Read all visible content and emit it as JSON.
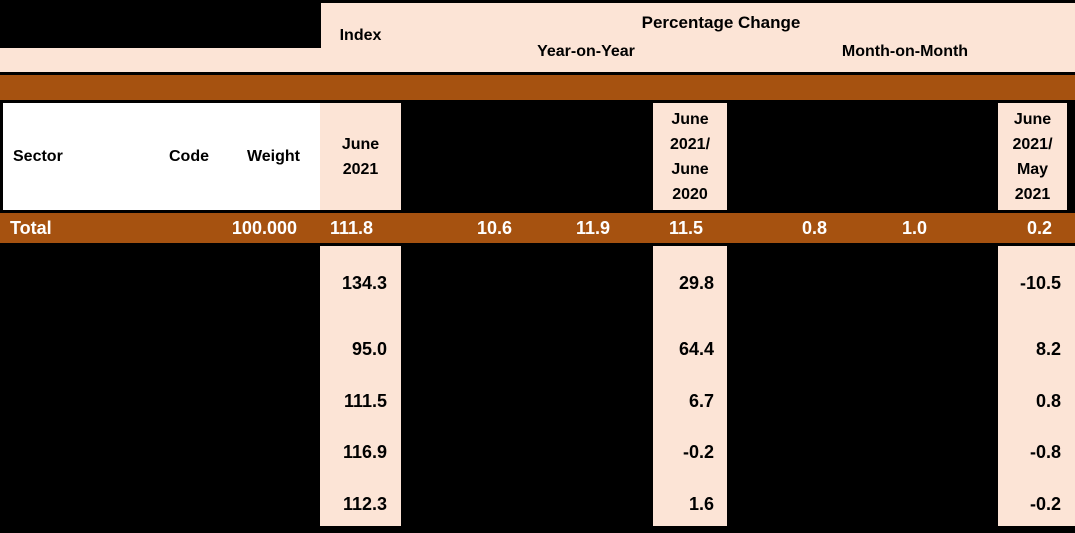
{
  "table": {
    "top_header": {
      "index_label": "Index",
      "percentage_change_label": "Percentage Change",
      "year_on_year_label": "Year-on-Year",
      "month_on_month_label": "Month-on-Month"
    },
    "column_headers": {
      "sector": "Sector",
      "code": "Code",
      "weight": "Weight",
      "index_period_lines": [
        "June",
        "2021"
      ],
      "yoy_period_lines": [
        "June",
        "2021/",
        "June",
        "2020"
      ],
      "mom_period_lines": [
        "June",
        "2021/",
        "May",
        "2021"
      ]
    },
    "total_row": {
      "label": "Total",
      "weight": "100.000",
      "index": "111.8",
      "yoy_1": "10.6",
      "yoy_2": "11.9",
      "yoy_3": "11.5",
      "mom_1": "0.8",
      "mom_2": "1.0",
      "mom_3": "0.2"
    },
    "data_rows": {
      "index_values": [
        "134.3",
        "95.0",
        "111.5",
        "116.9",
        "112.3"
      ],
      "yoy_values": [
        "29.8",
        "64.4",
        "6.7",
        "-0.2",
        "1.6"
      ],
      "mom_values": [
        "-10.5",
        "8.2",
        "0.8",
        "-0.8",
        "-0.2"
      ]
    },
    "colors": {
      "peach": "#FCE4D6",
      "orange": "#A65210",
      "redaction": "#000000"
    }
  }
}
